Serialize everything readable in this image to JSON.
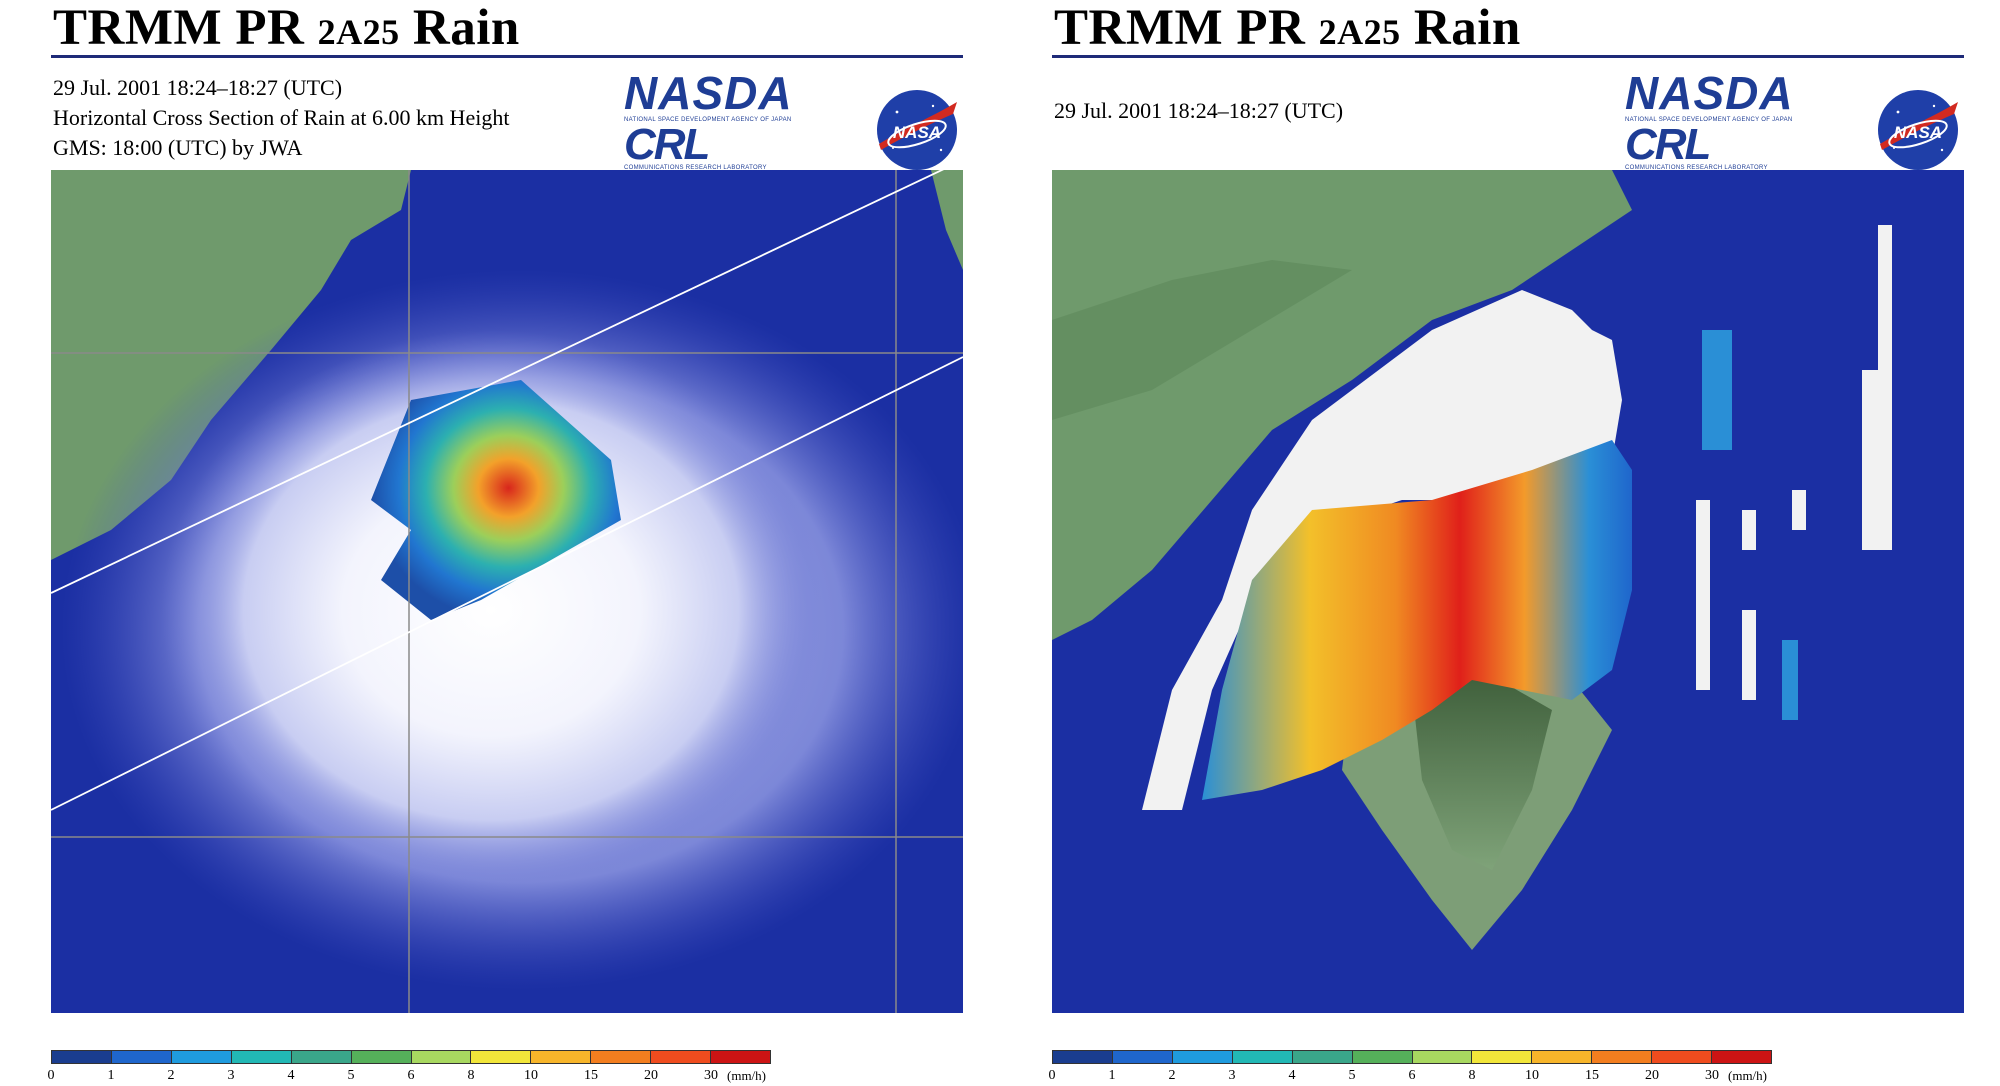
{
  "left_panel": {
    "title_main": "TRMM PR ",
    "title_small": "2A25",
    "title_end": " Rain",
    "info_lines": [
      "29 Jul. 2001  18:24–18:27 (UTC)",
      "Horizontal Cross Section of Rain at 6.00 km Height",
      "GMS: 18:00 (UTC) by JWA"
    ]
  },
  "right_panel": {
    "title_main": "TRMM PR ",
    "title_small": "2A25",
    "title_end": " Rain",
    "info_lines": [
      "29 Jul. 2001  18:24–18:27 (UTC)"
    ]
  },
  "logos": {
    "nasda": "NASDA",
    "nasda_sub": "NATIONAL SPACE DEVELOPMENT AGENCY OF JAPAN",
    "crl": "CRL",
    "crl_sub": "COMMUNICATIONS RESEARCH LABORATORY",
    "nasa": "NASA"
  },
  "legend": {
    "unit": "(mm/h)",
    "ticks": [
      "0",
      "1",
      "2",
      "3",
      "4",
      "5",
      "6",
      "8",
      "10",
      "15",
      "20",
      "30"
    ],
    "colors": [
      "#1a3d8f",
      "#1f66cc",
      "#1f9bde",
      "#22b8b5",
      "#3aa68a",
      "#55b05a",
      "#a8d860",
      "#f2e63a",
      "#f7b52a",
      "#f37e1f",
      "#ef4c1e",
      "#cc1414"
    ]
  },
  "colors": {
    "ocean": "#1b2fa3",
    "land": "#6f9a6c",
    "cloud": "#e6e9fb",
    "title_rule": "#1e2a78"
  }
}
